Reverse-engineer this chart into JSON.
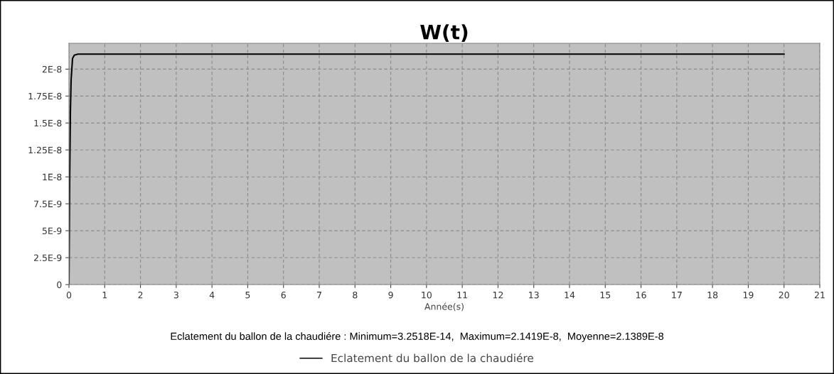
{
  "chart_data": {
    "type": "line",
    "title": "W(t)",
    "xlabel": "Année(s)",
    "x": [
      0,
      0.01,
      0.02,
      0.04,
      0.06,
      0.1,
      0.15,
      0.25,
      1,
      5,
      10,
      15,
      20
    ],
    "series": [
      {
        "name": "Eclatement du ballon de la chaudiére",
        "color": "#000000",
        "values": [
          0,
          5e-09,
          1e-08,
          1.6e-08,
          1.9e-08,
          2.1e-08,
          2.13e-08,
          2.14e-08,
          2.14e-08,
          2.14e-08,
          2.14e-08,
          2.14e-08,
          2.14e-08
        ]
      }
    ],
    "xlim": [
      0,
      21
    ],
    "xticks": [
      0,
      1,
      2,
      3,
      4,
      5,
      6,
      7,
      8,
      9,
      10,
      11,
      12,
      13,
      14,
      15,
      16,
      17,
      18,
      19,
      20,
      21
    ],
    "ylim": [
      0,
      2.24e-08
    ],
    "yticks": [
      {
        "value": 0,
        "label": "0"
      },
      {
        "value": 2.5e-09,
        "label": "2.5E-9"
      },
      {
        "value": 5e-09,
        "label": "5E-9"
      },
      {
        "value": 7.5e-09,
        "label": "7.5E-9"
      },
      {
        "value": 1e-08,
        "label": "1E-8"
      },
      {
        "value": 1.25e-08,
        "label": "1.25E-8"
      },
      {
        "value": 1.5e-08,
        "label": "1.5E-8"
      },
      {
        "value": 1.75e-08,
        "label": "1.75E-8"
      },
      {
        "value": 2e-08,
        "label": "2E-8"
      }
    ],
    "annotations": [
      "Eclatement du ballon de la chaudiére : Minimum=3.2518E-14,  Maximum=2.1419E-8,  Moyenne=2.1389E-8"
    ],
    "grid": true,
    "legend": "bottom",
    "marker": "none",
    "line_style": "solid"
  }
}
